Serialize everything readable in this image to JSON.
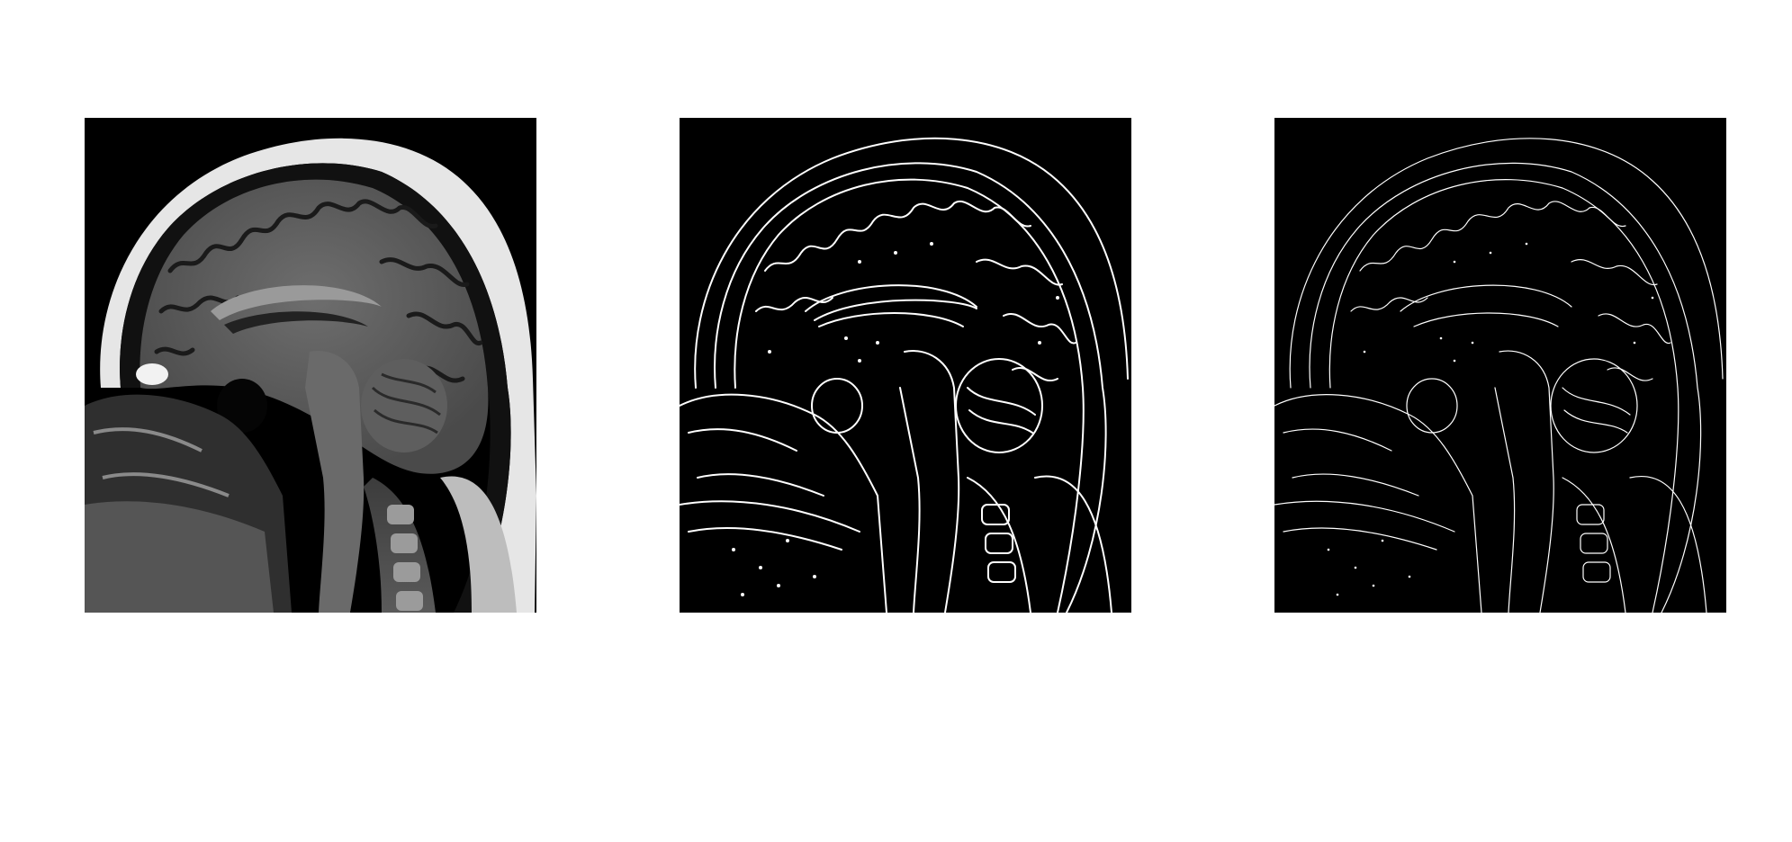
{
  "figure": {
    "panels": [
      {
        "id": "original-mri",
        "kind": "grayscale sagittal MRI slice"
      },
      {
        "id": "edge-map-a",
        "kind": "binary edge map"
      },
      {
        "id": "edge-map-b",
        "kind": "binary edge map"
      }
    ]
  },
  "colors": {
    "background": "#ffffff",
    "panel": "#000000",
    "edges": "#ffffff"
  }
}
